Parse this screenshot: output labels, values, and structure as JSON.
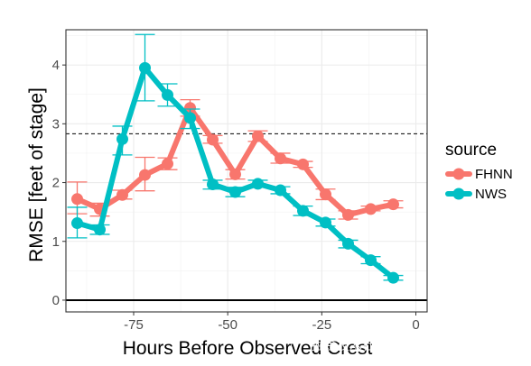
{
  "chart_data": {
    "type": "line",
    "xlabel": "Hours Before Observed Crest",
    "ylabel": "RMSE [feet of stage]",
    "xlim": [
      -93,
      3
    ],
    "ylim": [
      -0.2,
      4.6
    ],
    "xticks": [
      -75,
      -50,
      -25,
      0
    ],
    "xtick_labels": [
      "-75",
      "-50",
      "-25",
      "0"
    ],
    "yticks": [
      0,
      1,
      2,
      3,
      4
    ],
    "ytick_labels": [
      "0",
      "1",
      "2",
      "3",
      "4"
    ],
    "hline_dashed": 2.83,
    "hline_solid": 0,
    "grid": true,
    "legend": {
      "title": "source",
      "placement": "right"
    },
    "series": [
      {
        "name": "FHNN",
        "color": "#F8766D",
        "x": [
          -90,
          -84,
          -78,
          -72,
          -66,
          -60,
          -54,
          -48,
          -42,
          -36,
          -30,
          -24,
          -18,
          -12,
          -6
        ],
        "y": [
          1.72,
          1.55,
          1.79,
          2.13,
          2.32,
          3.27,
          2.73,
          2.14,
          2.79,
          2.41,
          2.31,
          1.8,
          1.45,
          1.55,
          1.63
        ],
        "err_low": [
          1.47,
          1.43,
          1.72,
          1.86,
          2.22,
          3.13,
          2.67,
          2.06,
          2.7,
          2.33,
          2.26,
          1.71,
          1.38,
          1.52,
          1.57
        ],
        "err_high": [
          2.01,
          1.65,
          1.87,
          2.43,
          2.42,
          3.41,
          2.8,
          2.22,
          2.88,
          2.5,
          2.36,
          1.89,
          1.52,
          1.6,
          1.69
        ]
      },
      {
        "name": "NWS",
        "color": "#00BFC4",
        "x": [
          -90,
          -84,
          -78,
          -72,
          -66,
          -60,
          -54,
          -48,
          -42,
          -36,
          -30,
          -24,
          -18,
          -12,
          -6
        ],
        "y": [
          1.31,
          1.2,
          2.74,
          3.95,
          3.49,
          3.1,
          1.97,
          1.84,
          1.98,
          1.87,
          1.52,
          1.32,
          0.96,
          0.68,
          0.38
        ],
        "err_low": [
          1.06,
          1.12,
          2.47,
          3.39,
          3.3,
          2.92,
          1.89,
          1.76,
          1.92,
          1.81,
          1.44,
          1.26,
          0.89,
          0.62,
          0.34
        ],
        "err_high": [
          1.58,
          1.28,
          2.96,
          4.52,
          3.68,
          3.25,
          2.04,
          1.92,
          2.04,
          1.93,
          1.6,
          1.38,
          1.02,
          0.74,
          0.42
        ]
      }
    ]
  },
  "watermark": "掘金技术社区 @ 神经星星"
}
